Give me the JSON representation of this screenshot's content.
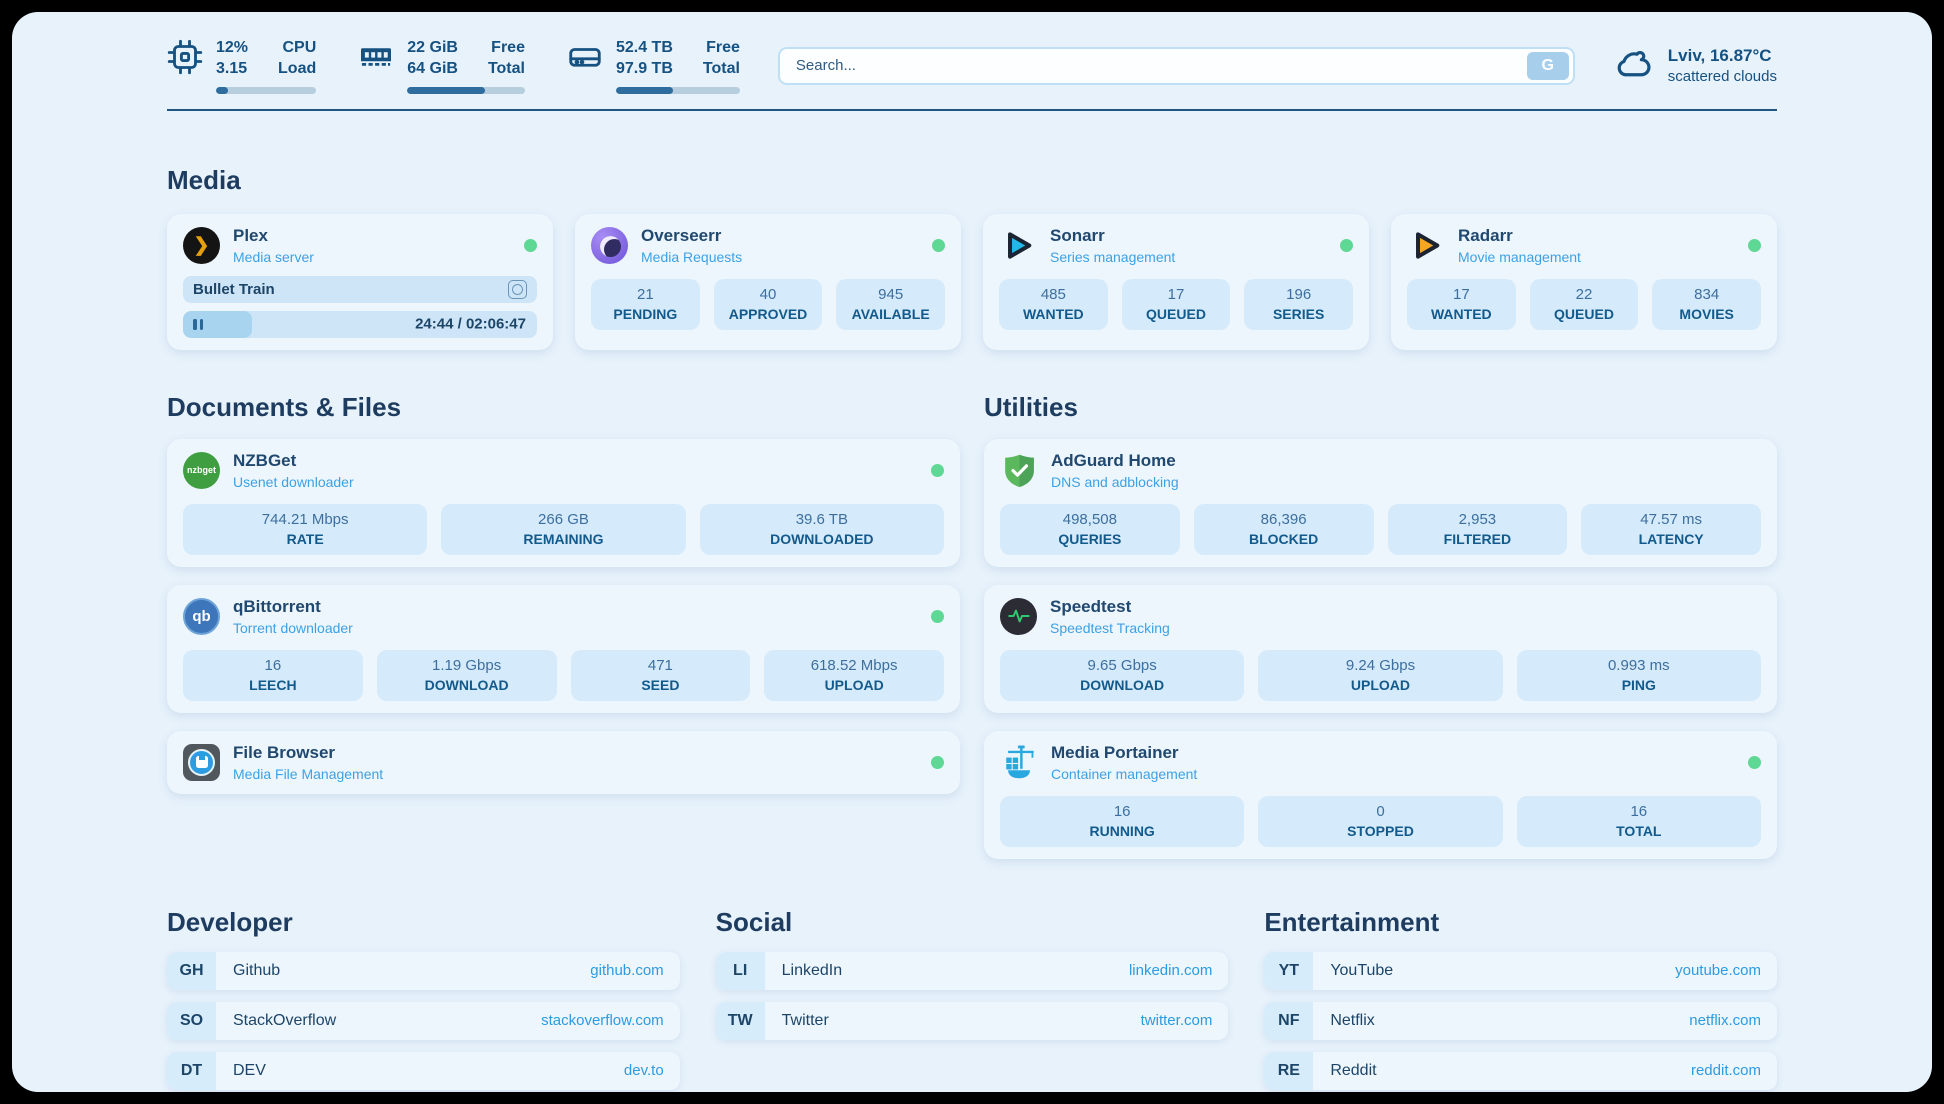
{
  "colors": {
    "panel_background": "#e8f2fb",
    "card_background": "#edf6fd",
    "stat_box_background": "#d5eafa",
    "accent_blue": "#3da1e4",
    "navy_text": "#1d4064",
    "status_green": "#5fd795",
    "progress_fill": "#2e6d9d"
  },
  "topbar": {
    "stats": [
      {
        "icon": "cpu-icon",
        "values": [
          "12%",
          "3.15"
        ],
        "labels": [
          "CPU",
          "Load"
        ],
        "progress_percent": 12
      },
      {
        "icon": "ram-icon",
        "values": [
          "22 GiB",
          "64 GiB"
        ],
        "labels": [
          "Free",
          "Total"
        ],
        "progress_percent": 66
      },
      {
        "icon": "disk-icon",
        "values": [
          "52.4 TB",
          "97.9 TB"
        ],
        "labels": [
          "Free",
          "Total"
        ],
        "progress_percent": 46
      }
    ],
    "search": {
      "placeholder": "Search...",
      "button_label": "G"
    },
    "weather": {
      "title": "Lviv, 16.87°C",
      "subtitle": "scattered clouds"
    }
  },
  "media": {
    "title": "Media",
    "plex": {
      "name": "Plex",
      "subtitle": "Media server",
      "status": "online",
      "logo_glyph": "❯",
      "now_playing": "Bullet Train",
      "time_display": "24:44 / 02:06:47",
      "progress_percent": 19.5
    },
    "overseerr": {
      "name": "Overseerr",
      "subtitle": "Media Requests",
      "status": "online",
      "stats": [
        {
          "value": "21",
          "label": "PENDING"
        },
        {
          "value": "40",
          "label": "APPROVED"
        },
        {
          "value": "945",
          "label": "AVAILABLE"
        }
      ]
    },
    "sonarr": {
      "name": "Sonarr",
      "subtitle": "Series management",
      "status": "online",
      "stats": [
        {
          "value": "485",
          "label": "WANTED"
        },
        {
          "value": "17",
          "label": "QUEUED"
        },
        {
          "value": "196",
          "label": "SERIES"
        }
      ]
    },
    "radarr": {
      "name": "Radarr",
      "subtitle": "Movie management",
      "status": "online",
      "stats": [
        {
          "value": "17",
          "label": "WANTED"
        },
        {
          "value": "22",
          "label": "QUEUED"
        },
        {
          "value": "834",
          "label": "MOVIES"
        }
      ]
    }
  },
  "documents": {
    "title": "Documents & Files",
    "nzbget": {
      "name": "NZBGet",
      "subtitle": "Usenet downloader",
      "status": "online",
      "logo_text": "nzbget",
      "stats": [
        {
          "value": "744.21 Mbps",
          "label": "RATE"
        },
        {
          "value": "266 GB",
          "label": "REMAINING"
        },
        {
          "value": "39.6 TB",
          "label": "DOWNLOADED"
        }
      ]
    },
    "qbittorrent": {
      "name": "qBittorrent",
      "subtitle": "Torrent downloader",
      "status": "online",
      "logo_text": "qb",
      "stats": [
        {
          "value": "16",
          "label": "LEECH"
        },
        {
          "value": "1.19 Gbps",
          "label": "DOWNLOAD"
        },
        {
          "value": "471",
          "label": "SEED"
        },
        {
          "value": "618.52 Mbps",
          "label": "UPLOAD"
        }
      ]
    },
    "filebrowser": {
      "name": "File Browser",
      "subtitle": "Media File Management",
      "status": "online"
    }
  },
  "utilities": {
    "title": "Utilities",
    "adguard": {
      "name": "AdGuard Home",
      "subtitle": "DNS and adblocking",
      "stats": [
        {
          "value": "498,508",
          "label": "QUERIES"
        },
        {
          "value": "86,396",
          "label": "BLOCKED"
        },
        {
          "value": "2,953",
          "label": "FILTERED"
        },
        {
          "value": "47.57 ms",
          "label": "LATENCY"
        }
      ]
    },
    "speedtest": {
      "name": "Speedtest",
      "subtitle": "Speedtest Tracking",
      "stats": [
        {
          "value": "9.65 Gbps",
          "label": "DOWNLOAD"
        },
        {
          "value": "9.24 Gbps",
          "label": "UPLOAD"
        },
        {
          "value": "0.993 ms",
          "label": "PING"
        }
      ]
    },
    "portainer": {
      "name": "Media Portainer",
      "subtitle": "Container management",
      "status": "online",
      "stats": [
        {
          "value": "16",
          "label": "RUNNING"
        },
        {
          "value": "0",
          "label": "STOPPED"
        },
        {
          "value": "16",
          "label": "TOTAL"
        }
      ]
    }
  },
  "links": {
    "developer": {
      "title": "Developer",
      "items": [
        {
          "abbr": "GH",
          "name": "Github",
          "url": "github.com"
        },
        {
          "abbr": "SO",
          "name": "StackOverflow",
          "url": "stackoverflow.com"
        },
        {
          "abbr": "DT",
          "name": "DEV",
          "url": "dev.to"
        }
      ]
    },
    "social": {
      "title": "Social",
      "items": [
        {
          "abbr": "LI",
          "name": "LinkedIn",
          "url": "linkedin.com"
        },
        {
          "abbr": "TW",
          "name": "Twitter",
          "url": "twitter.com"
        }
      ]
    },
    "entertainment": {
      "title": "Entertainment",
      "items": [
        {
          "abbr": "YT",
          "name": "YouTube",
          "url": "youtube.com"
        },
        {
          "abbr": "NF",
          "name": "Netflix",
          "url": "netflix.com"
        },
        {
          "abbr": "RE",
          "name": "Reddit",
          "url": "reddit.com"
        }
      ]
    }
  }
}
